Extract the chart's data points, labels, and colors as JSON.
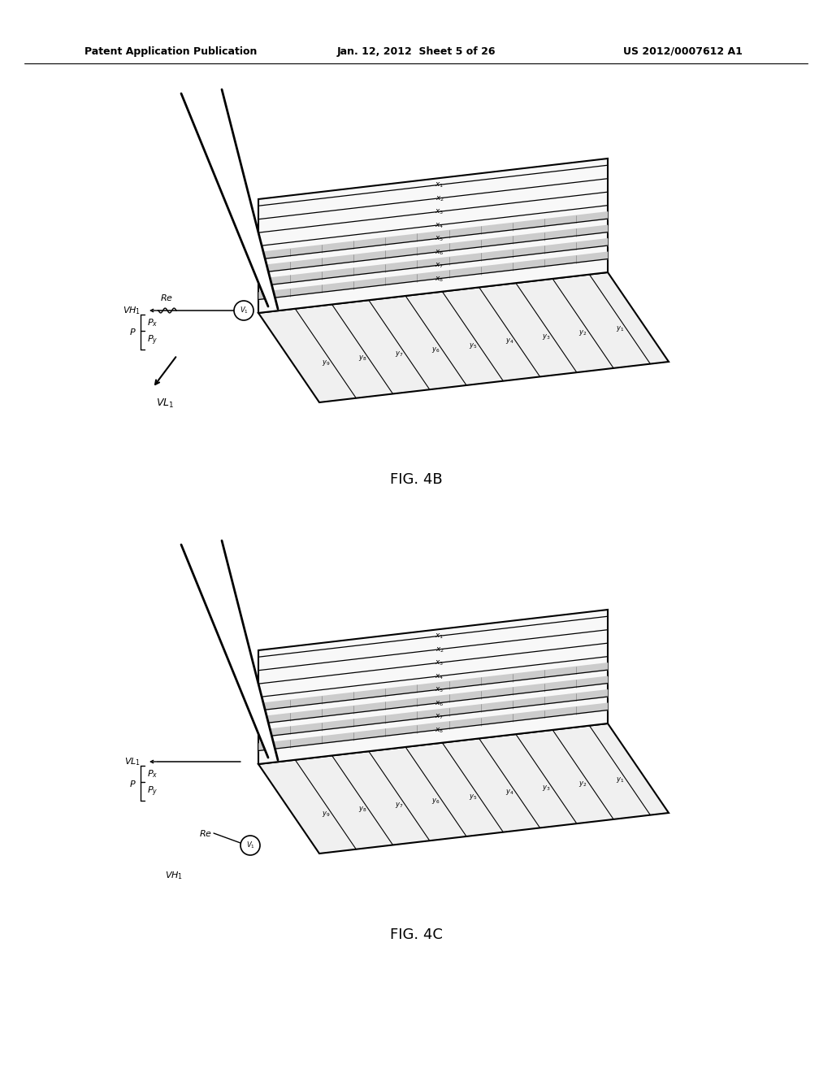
{
  "bg_color": "#ffffff",
  "header_left": "Patent Application Publication",
  "header_center": "Jan. 12, 2012  Sheet 5 of 26",
  "header_right": "US 2012/0007612 A1",
  "fig4b_label": "FIG. 4B",
  "fig4c_label": "FIG. 4C",
  "black": "#000000",
  "panel_fill_x": "#f0f0f0",
  "panel_fill_y": "#e8e8e8",
  "stripe_dark": "#888888",
  "stripe_med": "#bbbbbb"
}
